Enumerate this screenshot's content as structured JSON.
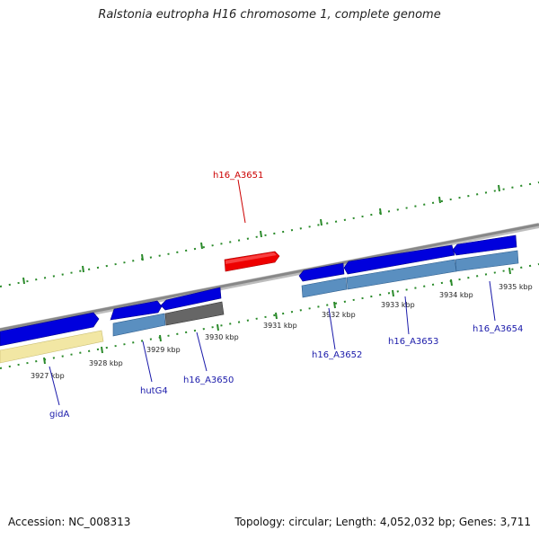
{
  "title": "Ralstonia eutropha H16 chromosome 1, complete genome",
  "footer": {
    "accession": "Accession: NC_008313",
    "summary": "Topology: circular; Length: 4,052,032 bp; Genes: 3,711"
  },
  "colors": {
    "forward_gene": "#0000dd",
    "selected_gene": "#ee0000",
    "cds_feature": "#5a8fc0",
    "pseudo_feature": "#666666",
    "rna_feature": "#f2e7a4",
    "backbone": "#888888",
    "ticks": "#2a8a2a",
    "label_blue": "#1a1aaa",
    "label_red": "#cc0000"
  },
  "ticks": [
    "3927 kbp",
    "3928 kbp",
    "3929 kbp",
    "3930 kbp",
    "3931 kbp",
    "3932 kbp",
    "3933 kbp",
    "3934 kbp",
    "3935 kbp"
  ],
  "genes": [
    {
      "label": "h16_A3651",
      "selected": true
    },
    {
      "label": "gidA",
      "selected": false
    },
    {
      "label": "hutG4",
      "selected": false
    },
    {
      "label": "h16_A3650",
      "selected": false
    },
    {
      "label": "h16_A3652",
      "selected": false
    },
    {
      "label": "h16_A3653",
      "selected": false
    },
    {
      "label": "h16_A3654",
      "selected": false
    }
  ]
}
